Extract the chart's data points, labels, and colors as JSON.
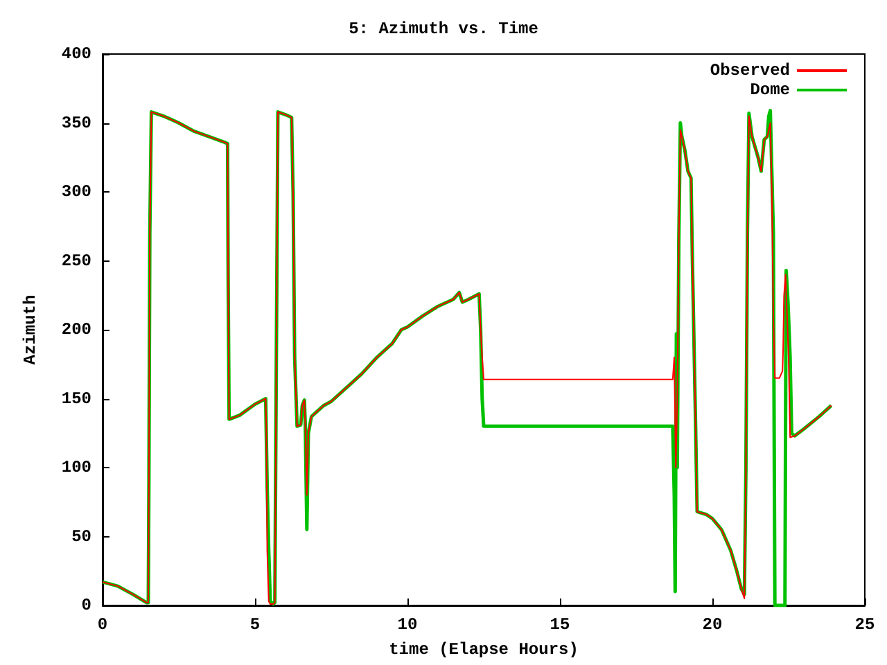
{
  "chart_data": {
    "type": "line",
    "title": "5: Azimuth vs. Time",
    "xlabel": "time (Elapse Hours)",
    "ylabel": "Azimuth",
    "xlim": [
      0,
      25
    ],
    "xticks": [
      0,
      5,
      10,
      15,
      20,
      25
    ],
    "ylim": [
      0,
      400
    ],
    "yticks": [
      0,
      50,
      100,
      150,
      200,
      250,
      300,
      350,
      400
    ],
    "grid": false,
    "legend": "top right",
    "marker": "none",
    "line_style": "solid",
    "series": [
      {
        "name": "Observed",
        "color": "#ff0000",
        "x": [
          0,
          0.5,
          1,
          1.45,
          1.5,
          1.52,
          1.55,
          1.6,
          2,
          2.5,
          3,
          3.5,
          4,
          4.1,
          4.12,
          4.15,
          4.5,
          5,
          5.35,
          5.37,
          5.4,
          5.45,
          5.5,
          5.6,
          5.65,
          5.7,
          5.75,
          6.0,
          6.2,
          6.25,
          6.3,
          6.38,
          6.5,
          6.55,
          6.62,
          6.65,
          6.7,
          6.75,
          6.85,
          7,
          7.25,
          7.5,
          7.7,
          8,
          8.5,
          9,
          9.5,
          9.8,
          10,
          10.5,
          11,
          11.5,
          11.7,
          11.8,
          12,
          12.35,
          12.4,
          12.45,
          12.5,
          18.7,
          18.75,
          18.8,
          18.85,
          18.9,
          18.95,
          19,
          19.1,
          19.2,
          19.3,
          19.35,
          19.45,
          19.5,
          19.8,
          20,
          20.3,
          20.6,
          20.8,
          20.95,
          21.05,
          21.1,
          21.15,
          21.2,
          21.3,
          21.5,
          21.6,
          21.7,
          21.8,
          21.85,
          21.9,
          21.95,
          22.0,
          22.05,
          22.2,
          22.3,
          22.32,
          22.35,
          22.4,
          22.45,
          22.5,
          22.55,
          22.7,
          23,
          23.5,
          23.9
        ],
        "values": [
          17,
          14,
          8,
          2,
          2,
          90,
          270,
          358,
          355,
          350,
          344,
          340,
          336,
          335,
          235,
          135,
          138,
          146,
          150,
          130,
          40,
          3,
          1,
          1,
          2,
          180,
          358,
          356,
          354,
          298,
          180,
          130,
          131,
          145,
          149,
          130,
          80,
          125,
          137,
          140,
          145,
          148,
          152,
          158,
          168,
          180,
          190,
          200,
          202,
          210,
          217,
          222,
          227,
          220,
          222,
          226,
          200,
          180,
          164,
          164,
          180,
          100,
          150,
          265,
          345,
          340,
          330,
          315,
          310,
          245,
          130,
          68,
          66,
          63,
          55,
          40,
          25,
          12,
          5,
          98,
          270,
          355,
          340,
          325,
          315,
          338,
          340,
          345,
          350,
          300,
          210,
          165,
          165,
          170,
          185,
          225,
          240,
          210,
          180,
          122,
          123,
          128,
          137,
          145
        ]
      },
      {
        "name": "Dome",
        "color": "#00c000",
        "x": [
          0,
          0.5,
          1,
          1.45,
          1.5,
          1.52,
          1.55,
          1.6,
          2,
          2.5,
          3,
          3.5,
          4,
          4.1,
          4.12,
          4.15,
          4.5,
          5,
          5.35,
          5.4,
          5.45,
          5.5,
          5.6,
          5.65,
          5.7,
          5.75,
          6.0,
          6.2,
          6.25,
          6.3,
          6.38,
          6.5,
          6.55,
          6.62,
          6.65,
          6.7,
          6.75,
          6.85,
          7,
          7.25,
          7.5,
          7.7,
          8,
          8.5,
          9,
          9.5,
          9.8,
          10,
          10.5,
          11,
          11.5,
          11.7,
          11.8,
          12,
          12.35,
          12.4,
          12.45,
          12.5,
          18.7,
          18.75,
          18.78,
          18.82,
          18.85,
          18.9,
          18.95,
          19,
          19.1,
          19.2,
          19.3,
          19.35,
          19.45,
          19.5,
          19.8,
          20,
          20.3,
          20.6,
          20.8,
          20.95,
          21.05,
          21.1,
          21.15,
          21.2,
          21.3,
          21.5,
          21.6,
          21.7,
          21.8,
          21.85,
          21.9,
          22.0,
          22.05,
          22.38,
          22.4,
          22.42,
          22.48,
          22.55,
          22.6,
          22.7,
          23,
          23.5,
          23.9
        ],
        "values": [
          17,
          14,
          8,
          2,
          2,
          90,
          270,
          358,
          355,
          350,
          344,
          340,
          336,
          335,
          235,
          135,
          138,
          146,
          150,
          85,
          40,
          3,
          1,
          2,
          180,
          358,
          356,
          354,
          298,
          180,
          130,
          131,
          145,
          149,
          130,
          55,
          125,
          137,
          140,
          145,
          148,
          152,
          158,
          168,
          180,
          190,
          200,
          202,
          210,
          217,
          222,
          227,
          220,
          222,
          226,
          200,
          150,
          130,
          130,
          80,
          10,
          197,
          100,
          265,
          350,
          340,
          330,
          315,
          310,
          245,
          130,
          68,
          66,
          63,
          55,
          40,
          25,
          12,
          8,
          98,
          270,
          357,
          340,
          325,
          315,
          338,
          340,
          355,
          359,
          270,
          0,
          0,
          130,
          243,
          220,
          180,
          125,
          123,
          128,
          137,
          145
        ]
      }
    ]
  }
}
